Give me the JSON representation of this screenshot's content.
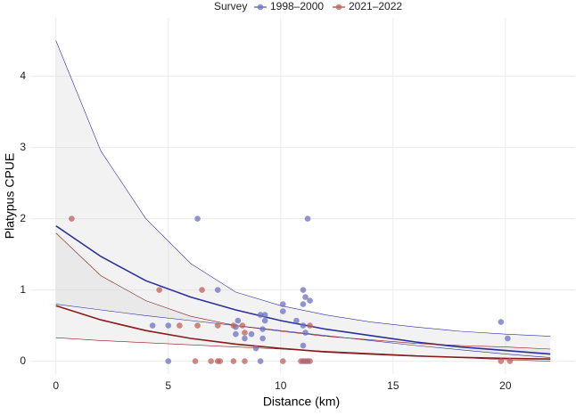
{
  "chart_data": {
    "type": "scatter",
    "legend_title": "Survey",
    "legend_position": "top",
    "xlabel": "Distance (km)",
    "ylabel": "Platypus CPUE",
    "xlim": [
      -1.1,
      23.1
    ],
    "ylim": [
      -0.18,
      4.82
    ],
    "xticks": [
      0,
      5,
      10,
      15,
      20
    ],
    "yticks": [
      0,
      1,
      2,
      3,
      4
    ],
    "grid": true,
    "band_color": "#d9d9d9",
    "series": [
      {
        "name": "1998–2000",
        "color": "#2b2f9e",
        "point_color": "#6b72c2",
        "x": [
          6.3,
          11.2,
          7.2,
          11,
          11.1,
          11.3,
          10.1,
          11,
          10.1,
          9.1,
          9.3,
          9.3,
          8.1,
          10.7,
          19.8,
          4.3,
          5,
          8,
          9.2,
          11,
          8,
          8.7,
          11.1,
          20.1,
          8.4,
          9.2,
          11,
          8.9,
          5,
          9.1,
          11,
          11.2
        ],
        "values": [
          2,
          2,
          1,
          1,
          0.9,
          0.85,
          0.8,
          0.8,
          0.7,
          0.65,
          0.65,
          0.57,
          0.57,
          0.57,
          0.55,
          0.5,
          0.5,
          0.48,
          0.45,
          0.5,
          0.38,
          0.38,
          0.4,
          0.32,
          0.32,
          0.32,
          0.22,
          0.18,
          0,
          0,
          0,
          0
        ],
        "fit_x": [
          0,
          2,
          4,
          6,
          8,
          10,
          12,
          14,
          16,
          18,
          20,
          22
        ],
        "fit": [
          1.9,
          1.47,
          1.13,
          0.9,
          0.72,
          0.57,
          0.45,
          0.36,
          0.27,
          0.2,
          0.15,
          0.1
        ],
        "fit_lower": [
          0.8,
          0.72,
          0.64,
          0.57,
          0.5,
          0.43,
          0.36,
          0.29,
          0.22,
          0.16,
          0.1,
          0.05
        ],
        "fit_upper": [
          4.5,
          2.95,
          2.0,
          1.37,
          0.97,
          0.78,
          0.65,
          0.55,
          0.48,
          0.42,
          0.38,
          0.35
        ]
      },
      {
        "name": "2021–2022",
        "color": "#8b1a1a",
        "point_color": "#c0605a",
        "x": [
          0.7,
          4.6,
          6.5,
          5.5,
          6.3,
          7.2,
          7.9,
          8.3,
          11.3,
          8.4,
          6.2,
          6.9,
          7.2,
          7.3,
          7.9,
          8.4,
          10.1,
          10.9,
          11.1,
          11.3,
          19.8,
          20.2
        ],
        "values": [
          2,
          1,
          1,
          0.5,
          0.5,
          0.5,
          0.5,
          0.5,
          0.5,
          0.4,
          0,
          0,
          0,
          0,
          0,
          0,
          0,
          0,
          0,
          0,
          0,
          0
        ],
        "fit_x": [
          0,
          2,
          4,
          6,
          8,
          10,
          12,
          14,
          16,
          18,
          20,
          22
        ],
        "fit": [
          0.78,
          0.58,
          0.43,
          0.32,
          0.24,
          0.18,
          0.13,
          0.1,
          0.073,
          0.054,
          0.04,
          0.03
        ],
        "fit_lower": [
          0.33,
          0.29,
          0.26,
          0.23,
          0.2,
          0.17,
          0.14,
          0.11,
          0.08,
          0.05,
          0.02,
          0.0
        ],
        "fit_upper": [
          1.8,
          1.2,
          0.85,
          0.63,
          0.5,
          0.42,
          0.35,
          0.3,
          0.25,
          0.22,
          0.2,
          0.17
        ]
      }
    ]
  }
}
